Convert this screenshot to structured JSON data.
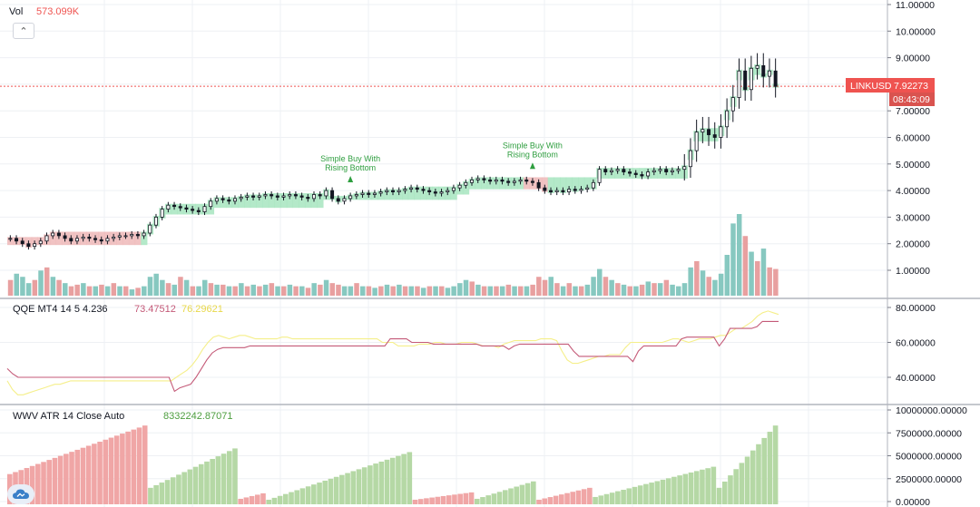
{
  "volume_legend": {
    "label": "Vol",
    "value": "573.099K"
  },
  "qqe_legend": {
    "label": "QQE MT4 14 5 4.236",
    "value1": "73.47512",
    "value2": "76.29621"
  },
  "wwv_legend": {
    "label": "WWV ATR 14 Close Auto",
    "value": "8332242.87071"
  },
  "price_tag": {
    "symbol": "LINKUSD",
    "price": "7.92273",
    "countdown": "08:43:09"
  },
  "signals": [
    {
      "line1": "Simple Buy With",
      "line2": "Rising Bottom",
      "bar": 56
    },
    {
      "line1": "Simple Buy With",
      "line2": "Rising Bottom",
      "bar": 86
    }
  ],
  "colors": {
    "up": "#26a69a",
    "down": "#ef5350",
    "band_green": "#a7e5c0",
    "band_red": "#efb8b8",
    "qqe_line": "#c45a78",
    "qqe_yellow": "#f5ef8a",
    "wwv_green": "#b5d8a5",
    "wwv_red": "#f0a6a6",
    "vol_up": "#87c8c0",
    "vol_down": "#e8a0a0",
    "signal": "#2e9e3f"
  },
  "icons": {
    "collapse": "chevron-up-icon",
    "logo": "cloud-logo-icon"
  },
  "chart_data": [
    {
      "type": "candlestick",
      "pane": "price",
      "symbol": "LINKUSD",
      "yaxis_ticks": [
        "11.00000",
        "10.00000",
        "9.00000",
        "8.00000",
        "7.00000",
        "6.00000",
        "5.00000",
        "4.00000",
        "3.00000",
        "2.00000",
        "1.00000"
      ],
      "ylim": [
        0.6,
        11.0
      ],
      "last_price": 7.92273,
      "closes": [
        2.2,
        2.1,
        2.0,
        1.9,
        2.0,
        2.1,
        2.3,
        2.4,
        2.3,
        2.2,
        2.1,
        2.2,
        2.25,
        2.2,
        2.15,
        2.1,
        2.2,
        2.25,
        2.3,
        2.3,
        2.35,
        2.3,
        2.4,
        2.7,
        3.0,
        3.3,
        3.45,
        3.4,
        3.35,
        3.3,
        3.25,
        3.2,
        3.4,
        3.6,
        3.7,
        3.65,
        3.6,
        3.7,
        3.75,
        3.8,
        3.75,
        3.8,
        3.85,
        3.8,
        3.75,
        3.8,
        3.85,
        3.8,
        3.75,
        3.7,
        3.85,
        3.8,
        4.0,
        3.7,
        3.6,
        3.7,
        3.8,
        3.85,
        3.9,
        3.85,
        3.9,
        3.95,
        4.0,
        3.95,
        4.0,
        4.05,
        4.1,
        4.05,
        4.0,
        3.95,
        3.9,
        3.95,
        4.0,
        4.1,
        4.2,
        4.3,
        4.4,
        4.45,
        4.4,
        4.35,
        4.4,
        4.35,
        4.3,
        4.35,
        4.4,
        4.35,
        4.3,
        4.1,
        4.0,
        3.95,
        4.0,
        3.95,
        4.05,
        4.0,
        4.05,
        4.1,
        4.3,
        4.8,
        4.7,
        4.75,
        4.8,
        4.7,
        4.65,
        4.6,
        4.55,
        4.7,
        4.75,
        4.8,
        4.7,
        4.75,
        4.8,
        4.9,
        5.5,
        6.2,
        6.3,
        6.1,
        6.0,
        6.4,
        7.0,
        7.5,
        8.5,
        7.8,
        8.6,
        8.7,
        8.3,
        8.5,
        7.92
      ],
      "signals": [
        {
          "bar": 56,
          "text": "Simple Buy With Rising Bottom"
        },
        {
          "bar": 86,
          "text": "Simple Buy With Rising Bottom"
        }
      ]
    },
    {
      "type": "bar",
      "pane": "volume",
      "name": "Vol",
      "last_value": "573.099K",
      "values": [
        0.5,
        0.7,
        0.6,
        0.4,
        0.5,
        0.8,
        0.9,
        0.6,
        0.5,
        0.4,
        0.3,
        0.35,
        0.4,
        0.3,
        0.3,
        0.35,
        0.3,
        0.4,
        0.3,
        0.3,
        0.2,
        0.25,
        0.3,
        0.6,
        0.7,
        0.5,
        0.4,
        0.35,
        0.6,
        0.5,
        0.3,
        0.3,
        0.5,
        0.4,
        0.35,
        0.35,
        0.3,
        0.3,
        0.4,
        0.3,
        0.35,
        0.3,
        0.35,
        0.4,
        0.3,
        0.3,
        0.35,
        0.3,
        0.3,
        0.25,
        0.4,
        0.35,
        0.5,
        0.4,
        0.35,
        0.3,
        0.3,
        0.4,
        0.3,
        0.3,
        0.25,
        0.3,
        0.35,
        0.3,
        0.35,
        0.3,
        0.3,
        0.3,
        0.25,
        0.3,
        0.3,
        0.3,
        0.25,
        0.3,
        0.4,
        0.5,
        0.45,
        0.35,
        0.3,
        0.3,
        0.3,
        0.3,
        0.35,
        0.3,
        0.3,
        0.3,
        0.35,
        0.6,
        0.5,
        0.6,
        0.4,
        0.3,
        0.4,
        0.3,
        0.3,
        0.35,
        0.6,
        0.85,
        0.6,
        0.5,
        0.4,
        0.35,
        0.3,
        0.3,
        0.35,
        0.45,
        0.4,
        0.4,
        0.5,
        0.35,
        0.3,
        0.4,
        0.9,
        1.1,
        0.8,
        0.6,
        0.5,
        0.7,
        1.3,
        2.3,
        2.6,
        1.9,
        1.4,
        1.1,
        1.5,
        0.9,
        0.85
      ],
      "up": [
        false,
        true,
        true,
        true,
        false,
        true,
        false,
        true,
        false,
        true,
        false,
        false,
        true,
        false,
        true,
        false,
        true,
        false,
        true,
        false,
        true,
        false,
        true,
        true,
        true,
        true,
        false,
        true,
        false,
        true,
        false,
        true,
        true,
        false,
        true,
        false,
        true,
        false,
        true,
        false,
        true,
        false,
        true,
        false,
        true,
        false,
        true,
        false,
        true,
        false,
        true,
        false,
        true,
        false,
        false,
        true,
        true,
        false,
        true,
        false,
        true,
        false,
        true,
        false,
        true,
        false,
        true,
        false,
        true,
        false,
        true,
        false,
        true,
        true,
        true,
        true,
        false,
        true,
        false,
        true,
        false,
        true,
        false,
        true,
        false,
        true,
        false,
        false,
        false,
        true,
        false,
        true,
        false,
        true,
        false,
        true,
        true,
        true,
        false,
        true,
        false,
        true,
        false,
        true,
        false,
        true,
        false,
        true,
        false,
        true,
        true,
        true,
        true,
        false,
        true,
        false,
        true,
        true,
        true,
        true,
        true,
        false,
        true,
        false,
        true,
        false,
        false
      ]
    },
    {
      "type": "line",
      "pane": "qqe",
      "name": "QQE MT4 14 5 4.236",
      "yaxis_ticks": [
        "80.00000",
        "60.00000",
        "40.00000"
      ],
      "ylim": [
        25,
        84
      ],
      "series": [
        {
          "name": "QQE line 1",
          "last": 73.47512,
          "values": [
            45,
            42,
            40,
            40,
            40,
            40,
            40,
            40,
            40,
            40,
            40,
            40,
            40,
            40,
            40,
            40,
            40,
            40,
            40,
            40,
            40,
            40,
            40,
            40,
            40,
            40,
            40,
            40,
            40,
            40,
            40,
            32,
            34,
            35,
            36,
            40,
            45,
            50,
            54,
            56,
            57,
            57,
            57,
            57,
            57,
            58,
            58,
            58,
            58,
            58,
            58,
            58,
            58,
            58,
            58,
            58,
            58,
            58,
            58,
            58,
            58,
            58,
            58,
            58,
            58,
            58,
            58,
            58,
            58,
            58,
            58,
            62,
            62,
            62,
            62,
            60,
            60,
            60,
            60,
            59,
            59,
            59,
            59,
            59,
            59,
            59,
            59,
            59,
            58,
            58,
            58,
            58,
            58,
            56,
            58,
            59,
            59,
            59,
            59,
            59,
            59,
            59,
            59,
            59,
            59,
            55,
            52,
            52,
            52,
            52,
            52,
            52,
            52,
            52,
            52,
            52,
            49,
            55,
            58,
            58,
            58,
            58,
            58,
            58,
            58,
            62,
            63,
            63,
            63,
            63,
            63,
            63,
            58,
            62,
            68,
            68,
            68,
            68,
            68,
            69,
            72,
            72,
            72,
            72
          ]
        },
        {
          "name": "QQE line 2",
          "last": 76.29621,
          "values": [
            38,
            33,
            30,
            30,
            31,
            32,
            33,
            34,
            35,
            36,
            36,
            37,
            38,
            38,
            38,
            38,
            38,
            38,
            38,
            38,
            38,
            38,
            38,
            38,
            38,
            38,
            38,
            38,
            38,
            38,
            38,
            38,
            40,
            42,
            44,
            47,
            51,
            56,
            60,
            63,
            64,
            63,
            62,
            63,
            64,
            64,
            63,
            62,
            62,
            62,
            62,
            62,
            63,
            63,
            62,
            62,
            62,
            62,
            62,
            62,
            62,
            62,
            62,
            62,
            62,
            62,
            62,
            62,
            62,
            62,
            62,
            60,
            60,
            60,
            58,
            58,
            58,
            58,
            59,
            59,
            59,
            60,
            60,
            59,
            59,
            59,
            60,
            60,
            60,
            59,
            58,
            58,
            58,
            57,
            59,
            60,
            61,
            61,
            61,
            61,
            61,
            62,
            62,
            62,
            61,
            55,
            50,
            48,
            48,
            49,
            50,
            51,
            52,
            52,
            53,
            53,
            53,
            57,
            60,
            60,
            60,
            60,
            60,
            60,
            60,
            61,
            62,
            62,
            61,
            60,
            61,
            62,
            62,
            62,
            63,
            64,
            64,
            66,
            68,
            68,
            70,
            72,
            75,
            77,
            78,
            77,
            76
          ]
        }
      ]
    },
    {
      "type": "bar",
      "pane": "wwv",
      "name": "WWV ATR 14 Close Auto",
      "yaxis_ticks": [
        "10000000.00000",
        "7500000.00000",
        "5000000.00000",
        "2500000.00000",
        "0.00000"
      ],
      "ylim": [
        0,
        10000000
      ],
      "last_value": 8332242.87071,
      "segments": [
        {
          "color": "red",
          "from": 0,
          "to": 24,
          "start": 3000000,
          "end": 8300000
        },
        {
          "color": "green",
          "from": 25,
          "to": 40,
          "start": 1500000,
          "end": 5800000
        },
        {
          "color": "red",
          "from": 41,
          "to": 45,
          "start": 300000,
          "end": 900000
        },
        {
          "color": "green",
          "from": 46,
          "to": 71,
          "start": 200000,
          "end": 5400000
        },
        {
          "color": "red",
          "from": 72,
          "to": 82,
          "start": 200000,
          "end": 1000000
        },
        {
          "color": "green",
          "from": 83,
          "to": 93,
          "start": 300000,
          "end": 2200000
        },
        {
          "color": "red",
          "from": 94,
          "to": 103,
          "start": 200000,
          "end": 1500000
        },
        {
          "color": "green",
          "from": 104,
          "to": 125,
          "start": 500000,
          "end": 3800000
        },
        {
          "color": "green",
          "from": 126,
          "to": 136,
          "start": 1500000,
          "end": 8300000
        }
      ]
    }
  ]
}
